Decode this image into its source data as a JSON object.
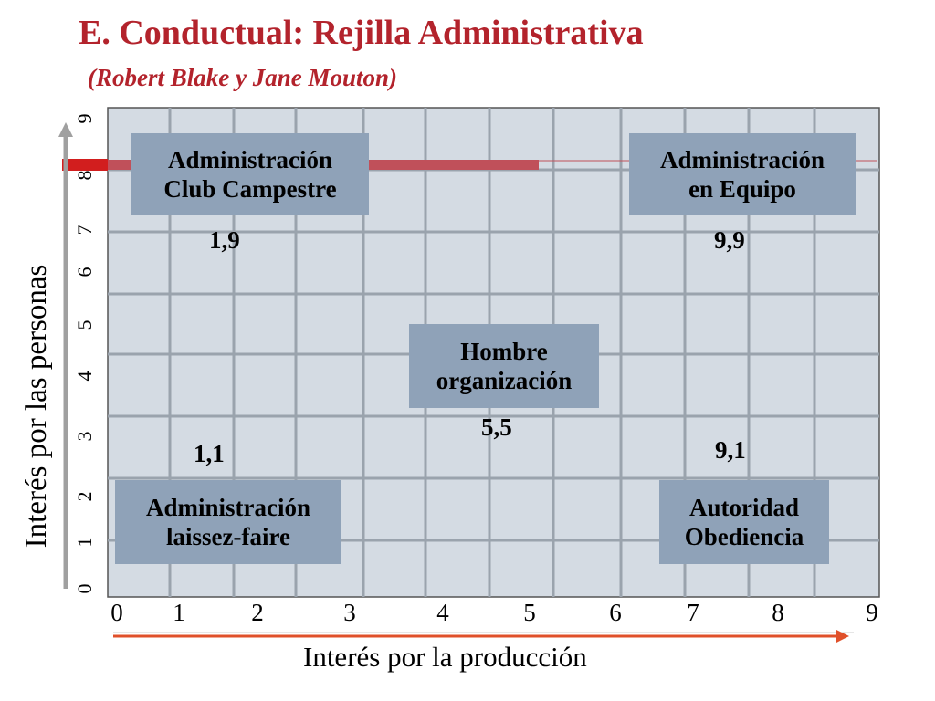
{
  "title": "E. Conductual: Rejilla Administrativa",
  "subtitle": "(Robert Blake y Jane Mouton)",
  "axes": {
    "x_label": "Interés por la producción",
    "y_label": "Interés por las personas",
    "x_ticks": [
      "0",
      "1",
      "2",
      "3",
      "4",
      "5",
      "6",
      "7",
      "8",
      "9"
    ],
    "y_ticks": [
      "0",
      "1",
      "2",
      "3",
      "4",
      "5",
      "6",
      "7",
      "8",
      "9"
    ]
  },
  "styles": {
    "club_campestre": {
      "label": "Administración\nClub Campestre",
      "coord": "1,9"
    },
    "equipo": {
      "label": "Administración\nen Equipo",
      "coord": "9,9"
    },
    "organizacion": {
      "label": "Hombre\norganización",
      "coord": "5,5"
    },
    "laissez_faire": {
      "label": "Administración\nlaissez-faire",
      "coord": "1,1"
    },
    "autoridad": {
      "label": "Autoridad\nObediencia",
      "coord": "9,1"
    }
  },
  "colors": {
    "title": "#b3232c",
    "grid_bg": "#d4dbe3",
    "box_bg": "#8fa2b8",
    "accent_bar": "#c0505a",
    "x_arrow": "#e0502a",
    "y_arrow": "#a0a0a0"
  }
}
